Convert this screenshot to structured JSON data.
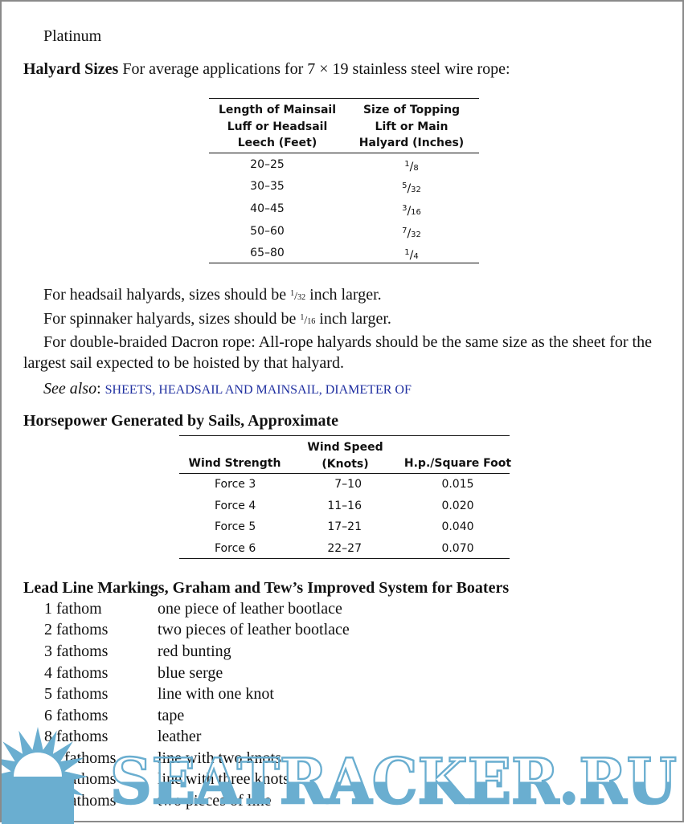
{
  "top_fragment": "Platinum",
  "halyard": {
    "heading": "Halyard Sizes",
    "intro": "For average applications for 7 × 19 stainless steel wire rope:",
    "table": {
      "headers": [
        [
          "Length of Mainsail",
          "Luff or Headsail",
          "Leech (Feet)"
        ],
        [
          "Size of Topping",
          "Lift or Main",
          "Halyard (Inches)"
        ]
      ],
      "rows": [
        [
          "20–25",
          "1/8"
        ],
        [
          "30–35",
          "5/32"
        ],
        [
          "40–45",
          "3/16"
        ],
        [
          "50–60",
          "7/32"
        ],
        [
          "65–80",
          "1/4"
        ]
      ]
    },
    "notes": {
      "headsail_pre": "For headsail halyards, sizes should be ",
      "headsail_frac": "1/32",
      "headsail_post": " inch larger.",
      "spinnaker_pre": "For spinnaker halyards, sizes should be ",
      "spinnaker_frac": "1/16",
      "spinnaker_post": " inch larger.",
      "dacron": "For double-braided Dacron rope: All-rope halyards should be the same size as the sheet for the largest sail expected to be hoisted by that halyard."
    },
    "see_also_label": "See also",
    "see_also_link": "SHEETS, HEADSAIL AND MAINSAIL, DIAMETER OF"
  },
  "horsepower": {
    "heading": "Horsepower Generated by Sails, Approximate",
    "headers": [
      [
        "Wind Strength"
      ],
      [
        "Wind Speed",
        "(Knots)"
      ],
      [
        "H.p./Square Foot"
      ]
    ],
    "rows": [
      [
        "Force 3",
        "7–10",
        "0.015"
      ],
      [
        "Force 4",
        "11–16",
        "0.020"
      ],
      [
        "Force 5",
        "17–21",
        "0.040"
      ],
      [
        "Force 6",
        "22–27",
        "0.070"
      ]
    ]
  },
  "lead_line": {
    "heading": "Lead Line Markings, Graham and Tew’s Improved System for Boaters",
    "rows": [
      [
        "1 fathom",
        "one piece of leather bootlace"
      ],
      [
        "2 fathoms",
        "two pieces of leather bootlace"
      ],
      [
        "3 fathoms",
        "red bunting"
      ],
      [
        "4 fathoms",
        "blue serge"
      ],
      [
        "5 fathoms",
        "line with one knot"
      ],
      [
        "6 fathoms",
        "tape"
      ],
      [
        "8 fathoms",
        "leather"
      ],
      [
        "10 fathoms",
        "line with two knots"
      ],
      [
        "15 fathoms",
        "line with three knots"
      ],
      [
        "20 fathoms",
        "two pieces of line"
      ]
    ]
  },
  "watermark": {
    "text": "SEATRACKER.RU",
    "color": "#6aaed0"
  }
}
